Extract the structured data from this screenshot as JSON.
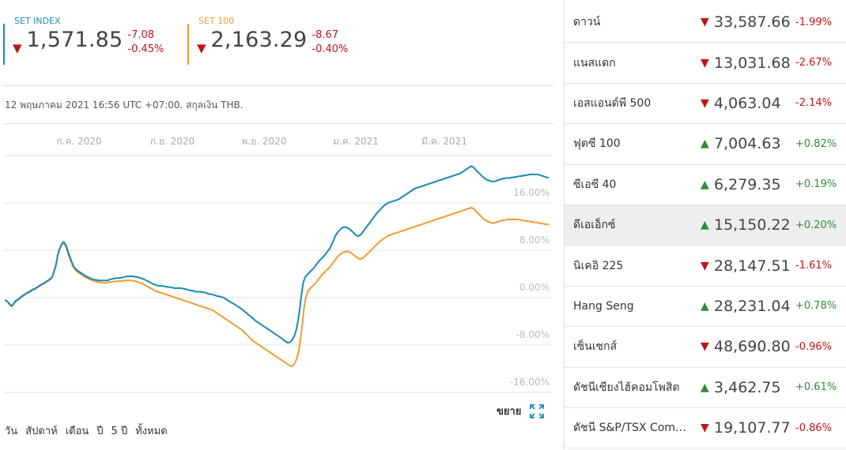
{
  "indices": [
    {
      "name": "SET INDEX",
      "arrow": "▼",
      "value": "1,571.85",
      "change": "-7.08",
      "percent": "-0.45%",
      "color": "#1a8bb3"
    },
    {
      "name": "SET 100",
      "arrow": "▼",
      "value": "2,163.29",
      "change": "-8.67",
      "percent": "-0.40%",
      "color": "#f29b33"
    }
  ],
  "date_line": "12 พฤษภาคม 2021 16:56 UTC +07:00. สกุลเงิน THB.",
  "expand_label": "ขยาย",
  "ranges": [
    "วัน",
    "สัปดาห์",
    "เดือน",
    "ปี",
    "5 ปี",
    "ทั้งหมด"
  ],
  "chart_data": {
    "type": "line",
    "x_ticks": [
      "ก.ค. 2020",
      "ก.ย. 2020",
      "พ.ย. 2020",
      "ม.ค. 2021",
      "มี.ค. 2021"
    ],
    "y_ticks": [
      "16.00%",
      "8.00%",
      "0.00%",
      "-8.00%",
      "-16.00%"
    ],
    "ylim": [
      -16,
      24
    ],
    "series": [
      {
        "name": "SET INDEX",
        "color": "#1a8bb3",
        "values": [
          -0.4,
          -0.5,
          -0.8,
          -1.2,
          -1.4,
          -1.0,
          -0.6,
          -0.4,
          -0.2,
          0.1,
          0.3,
          0.5,
          0.7,
          0.9,
          1.0,
          1.2,
          1.4,
          1.5,
          1.7,
          1.9,
          2.1,
          2.3,
          2.4,
          2.6,
          2.8,
          3.0,
          3.2,
          3.6,
          4.5,
          5.5,
          7.2,
          8.2,
          8.9,
          9.4,
          9.2,
          8.6,
          7.6,
          6.8,
          6.0,
          5.3,
          4.9,
          4.6,
          4.4,
          4.2,
          4.0,
          3.8,
          3.6,
          3.5,
          3.3,
          3.2,
          3.1,
          3.0,
          3.0,
          2.9,
          2.9,
          2.9,
          2.9,
          2.9,
          2.9,
          3.0,
          3.1,
          3.2,
          3.2,
          3.3,
          3.3,
          3.3,
          3.4,
          3.4,
          3.5,
          3.6,
          3.6,
          3.6,
          3.6,
          3.6,
          3.5,
          3.5,
          3.4,
          3.3,
          3.2,
          3.1,
          2.9,
          2.8,
          2.6,
          2.5,
          2.3,
          2.2,
          2.1,
          2.0,
          2.0,
          2.0,
          1.9,
          1.9,
          1.8,
          1.8,
          1.7,
          1.7,
          1.6,
          1.6,
          1.6,
          1.6,
          1.6,
          1.5,
          1.5,
          1.4,
          1.3,
          1.2,
          1.2,
          1.1,
          1.0,
          1.0,
          1.0,
          1.0,
          0.9,
          0.9,
          0.8,
          0.7,
          0.6,
          0.6,
          0.5,
          0.4,
          0.3,
          0.2,
          0.2,
          0.1,
          0.0,
          -0.2,
          -0.4,
          -0.6,
          -0.8,
          -0.9,
          -1.1,
          -1.3,
          -1.5,
          -1.7,
          -1.9,
          -2.1,
          -2.4,
          -2.6,
          -2.9,
          -3.1,
          -3.4,
          -3.6,
          -3.9,
          -4.1,
          -4.3,
          -4.5,
          -4.7,
          -4.9,
          -5.1,
          -5.3,
          -5.5,
          -5.7,
          -5.9,
          -6.1,
          -6.3,
          -6.5,
          -6.7,
          -6.9,
          -7.2,
          -7.4,
          -7.6,
          -7.6,
          -7.4,
          -7.0,
          -6.5,
          -5.5,
          -4.0,
          -2.0,
          0.5,
          2.5,
          3.4,
          3.8,
          4.1,
          4.4,
          4.7,
          5.0,
          5.4,
          5.8,
          6.2,
          6.5,
          6.8,
          7.1,
          7.5,
          7.9,
          8.3,
          8.9,
          9.6,
          10.3,
          10.8,
          11.2,
          11.5,
          11.8,
          11.9,
          11.9,
          11.8,
          11.6,
          11.4,
          11.1,
          10.8,
          10.5,
          10.4,
          10.5,
          10.8,
          11.2,
          11.6,
          12.0,
          12.4,
          12.8,
          13.2,
          13.6,
          14.0,
          14.4,
          14.7,
          15.0,
          15.3,
          15.6,
          15.8,
          16.0,
          16.1,
          16.2,
          16.3,
          16.4,
          16.5,
          16.6,
          16.8,
          17.0,
          17.2,
          17.4,
          17.6,
          17.8,
          18.0,
          18.2,
          18.4,
          18.5,
          18.6,
          18.7,
          18.8,
          18.9,
          19.0,
          19.1,
          19.2,
          19.3,
          19.4,
          19.5,
          19.6,
          19.7,
          19.8,
          19.9,
          20.0,
          20.1,
          20.2,
          20.3,
          20.4,
          20.5,
          20.6,
          20.7,
          20.8,
          20.9,
          21.0,
          21.2,
          21.4,
          21.6,
          21.8,
          22.0,
          22.2,
          22.1,
          21.8,
          21.5,
          21.2,
          20.9,
          20.6,
          20.3,
          20.1,
          19.9,
          19.8,
          19.7,
          19.6,
          19.6,
          19.7,
          19.8,
          19.9,
          20.0,
          20.1,
          20.1,
          20.2,
          20.2,
          20.2,
          20.3,
          20.3,
          20.4,
          20.4,
          20.5,
          20.5,
          20.6,
          20.6,
          20.7,
          20.7,
          20.8,
          20.8,
          20.8,
          20.8,
          20.8,
          20.8,
          20.7,
          20.6,
          20.5,
          20.4,
          20.3,
          20.2
        ]
      },
      {
        "name": "SET 100",
        "color": "#f29b33",
        "values": [
          -0.4,
          -0.5,
          -0.9,
          -1.3,
          -1.5,
          -1.1,
          -0.7,
          -0.5,
          -0.3,
          0.0,
          0.2,
          0.4,
          0.6,
          0.8,
          0.9,
          1.1,
          1.3,
          1.4,
          1.6,
          1.8,
          2.0,
          2.2,
          2.3,
          2.5,
          2.7,
          2.9,
          3.1,
          3.5,
          4.4,
          5.4,
          7.0,
          8.0,
          8.7,
          9.2,
          9.0,
          8.4,
          7.4,
          6.6,
          5.8,
          5.1,
          4.7,
          4.4,
          4.2,
          4.0,
          3.8,
          3.6,
          3.4,
          3.3,
          3.1,
          3.0,
          2.9,
          2.8,
          2.7,
          2.6,
          2.6,
          2.5,
          2.5,
          2.5,
          2.5,
          2.6,
          2.6,
          2.7,
          2.7,
          2.7,
          2.8,
          2.8,
          2.8,
          2.8,
          2.9,
          2.9,
          2.9,
          2.9,
          2.9,
          2.8,
          2.8,
          2.7,
          2.6,
          2.5,
          2.4,
          2.2,
          2.1,
          1.9,
          1.7,
          1.6,
          1.4,
          1.2,
          1.1,
          1.0,
          0.9,
          0.8,
          0.7,
          0.6,
          0.5,
          0.4,
          0.3,
          0.2,
          0.1,
          0.0,
          -0.1,
          -0.2,
          -0.3,
          -0.4,
          -0.5,
          -0.6,
          -0.7,
          -0.8,
          -0.9,
          -1.0,
          -1.1,
          -1.2,
          -1.3,
          -1.4,
          -1.5,
          -1.6,
          -1.7,
          -1.8,
          -1.9,
          -2.0,
          -2.1,
          -2.3,
          -2.5,
          -2.7,
          -2.9,
          -3.1,
          -3.3,
          -3.5,
          -3.7,
          -3.9,
          -4.1,
          -4.3,
          -4.5,
          -4.7,
          -4.9,
          -5.1,
          -5.3,
          -5.5,
          -5.8,
          -6.1,
          -6.4,
          -6.7,
          -7.0,
          -7.3,
          -7.5,
          -7.7,
          -7.9,
          -8.1,
          -8.3,
          -8.5,
          -8.7,
          -8.9,
          -9.1,
          -9.3,
          -9.5,
          -9.7,
          -9.9,
          -10.1,
          -10.3,
          -10.5,
          -10.7,
          -10.9,
          -11.1,
          -11.3,
          -11.5,
          -11.6,
          -11.4,
          -10.9,
          -10.2,
          -9.0,
          -7.0,
          -4.5,
          -1.8,
          0.0,
          1.0,
          1.4,
          1.7,
          2.0,
          2.3,
          2.6,
          3.0,
          3.4,
          3.8,
          4.1,
          4.4,
          4.7,
          5.0,
          5.3,
          5.7,
          6.1,
          6.5,
          6.9,
          7.2,
          7.4,
          7.6,
          7.7,
          7.8,
          7.8,
          7.7,
          7.5,
          7.3,
          7.0,
          6.8,
          6.6,
          6.5,
          6.6,
          6.8,
          7.1,
          7.4,
          7.7,
          8.0,
          8.3,
          8.6,
          8.9,
          9.2,
          9.5,
          9.7,
          9.9,
          10.1,
          10.3,
          10.5,
          10.6,
          10.7,
          10.8,
          10.9,
          11.0,
          11.1,
          11.2,
          11.3,
          11.4,
          11.5,
          11.6,
          11.7,
          11.8,
          11.9,
          12.0,
          12.1,
          12.2,
          12.3,
          12.4,
          12.5,
          12.6,
          12.7,
          12.8,
          12.9,
          13.0,
          13.1,
          13.2,
          13.3,
          13.4,
          13.5,
          13.6,
          13.7,
          13.8,
          13.9,
          14.0,
          14.1,
          14.2,
          14.3,
          14.4,
          14.5,
          14.6,
          14.7,
          14.8,
          14.9,
          15.0,
          15.1,
          15.2,
          15.1,
          14.8,
          14.5,
          14.2,
          13.9,
          13.6,
          13.3,
          13.1,
          12.9,
          12.8,
          12.7,
          12.6,
          12.6,
          12.7,
          12.8,
          12.9,
          13.0,
          13.1,
          13.1,
          13.2,
          13.2,
          13.2,
          13.2,
          13.2,
          13.2,
          13.2,
          13.2,
          13.1,
          13.1,
          13.0,
          13.0,
          12.9,
          12.9,
          12.8,
          12.8,
          12.7,
          12.7,
          12.6,
          12.6,
          12.5,
          12.5,
          12.4,
          12.4,
          12.3
        ]
      }
    ]
  },
  "markets": [
    {
      "name": "ดาวน์",
      "arrow": "▼",
      "value": "33,587.66",
      "change": "-1.99%",
      "dir": "down"
    },
    {
      "name": "แนสแดก",
      "arrow": "▼",
      "value": "13,031.68",
      "change": "-2.67%",
      "dir": "down"
    },
    {
      "name": "เอสแอนด์พี 500",
      "arrow": "▼",
      "value": "4,063.04",
      "change": "-2.14%",
      "dir": "down"
    },
    {
      "name": "ฟุตซี 100",
      "arrow": "▲",
      "value": "7,004.63",
      "change": "+0.82%",
      "dir": "up"
    },
    {
      "name": "ซีเอซี 40",
      "arrow": "▲",
      "value": "6,279.35",
      "change": "+0.19%",
      "dir": "up"
    },
    {
      "name": "ดีเอเอ็กซ์",
      "arrow": "▲",
      "value": "15,150.22",
      "change": "+0.20%",
      "dir": "up"
    },
    {
      "name": "นิเคอิ 225",
      "arrow": "▼",
      "value": "28,147.51",
      "change": "-1.61%",
      "dir": "down"
    },
    {
      "name": "Hang Seng",
      "arrow": "▲",
      "value": "28,231.04",
      "change": "+0.78%",
      "dir": "up"
    },
    {
      "name": "เซ็นเซกส์",
      "arrow": "▼",
      "value": "48,690.80",
      "change": "-0.96%",
      "dir": "down"
    },
    {
      "name": "ดัชนีเซียงไฮ้คอมโพสิต",
      "arrow": "▲",
      "value": "3,462.75",
      "change": "+0.61%",
      "dir": "up"
    },
    {
      "name": "ดัชนี S&P/TSX Com…",
      "arrow": "▼",
      "value": "19,107.77",
      "change": "-0.86%",
      "dir": "down"
    }
  ]
}
